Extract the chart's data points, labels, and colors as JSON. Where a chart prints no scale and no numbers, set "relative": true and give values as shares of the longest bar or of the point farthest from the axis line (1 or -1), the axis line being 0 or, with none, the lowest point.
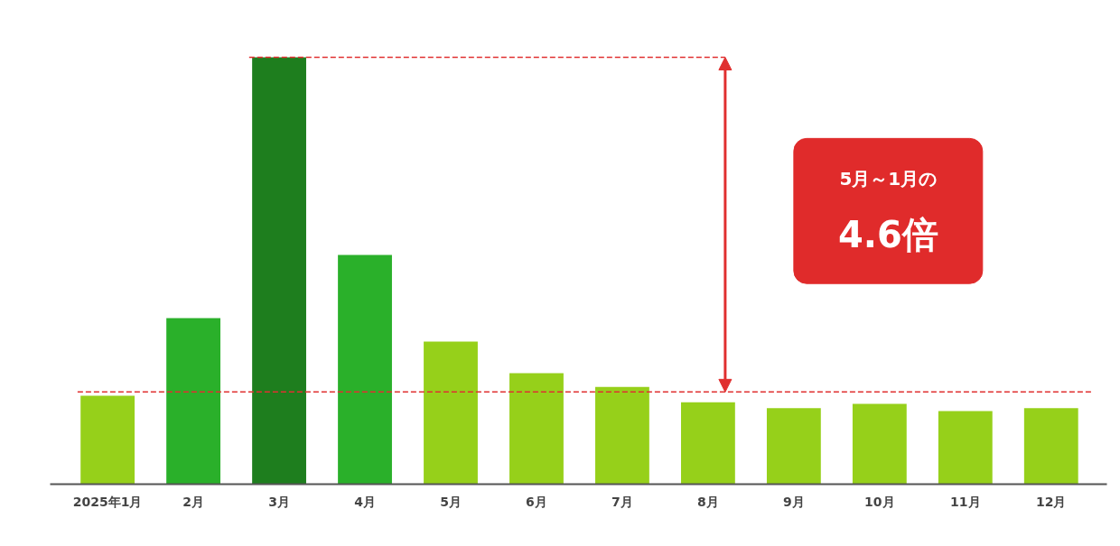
{
  "chart_data": {
    "type": "bar",
    "relative": true,
    "categories": [
      "2025年1月",
      "2月",
      "3月",
      "4月",
      "5月",
      "6月",
      "7月",
      "8月",
      "9月",
      "10月",
      "11月",
      "12月"
    ],
    "values": [
      0.207,
      0.389,
      1,
      0.537,
      0.334,
      0.26,
      0.228,
      0.192,
      0.178,
      0.188,
      0.171,
      0.178
    ],
    "colors": [
      "#96d01a",
      "#2ab02a",
      "#1e7e1e",
      "#2ab02a",
      "#96d01a",
      "#96d01a",
      "#96d01a",
      "#96d01a",
      "#96d01a",
      "#96d01a",
      "#96d01a",
      "#96d01a"
    ],
    "ref_lines": [
      {
        "axis": "y",
        "value": 0.216,
        "color": "#e03030",
        "line_style": "dashed"
      },
      {
        "axis": "y",
        "value": 1,
        "color": "#e03030",
        "line_style": "dashed"
      }
    ],
    "annotations": [
      "5月～1月の",
      "4.6倍"
    ]
  }
}
